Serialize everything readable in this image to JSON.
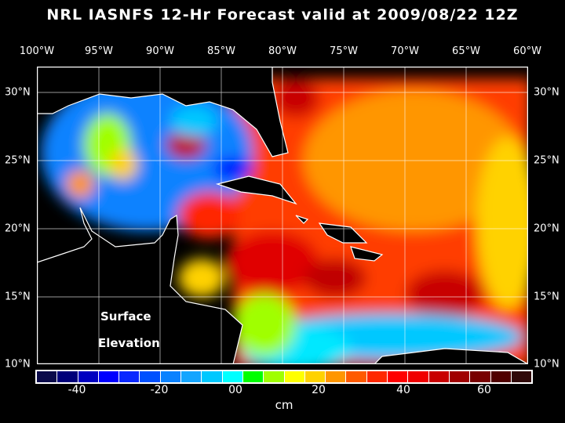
{
  "title": "NRL IASNFS  12-Hr Forecast valid at 2009/08/22 12Z",
  "lon_labels": [
    "100°W",
    "95°W",
    "90°W",
    "85°W",
    "80°W",
    "75°W",
    "70°W",
    "65°W",
    "60°W"
  ],
  "lat_labels": [
    "30°N",
    "25°N",
    "20°N",
    "15°N",
    "10°N"
  ],
  "map_labels": {
    "line1": "Surface",
    "line2": "Elevation"
  },
  "colorbar": {
    "colors": [
      "#0a0a4a",
      "#00007a",
      "#0000c0",
      "#0000ff",
      "#0a28ff",
      "#0050ff",
      "#0a82ff",
      "#14a5ff",
      "#00c8ff",
      "#00ffff",
      "#00ff00",
      "#a0ff00",
      "#ffff00",
      "#ffd200",
      "#ff9600",
      "#ff5a00",
      "#ff2800",
      "#ff0000",
      "#f00000",
      "#c80000",
      "#a00000",
      "#780000",
      "#500000",
      "#300808"
    ],
    "tick_labels": [
      "-40",
      "-20",
      "00",
      "20",
      "40",
      "60"
    ],
    "units": "cm"
  }
}
